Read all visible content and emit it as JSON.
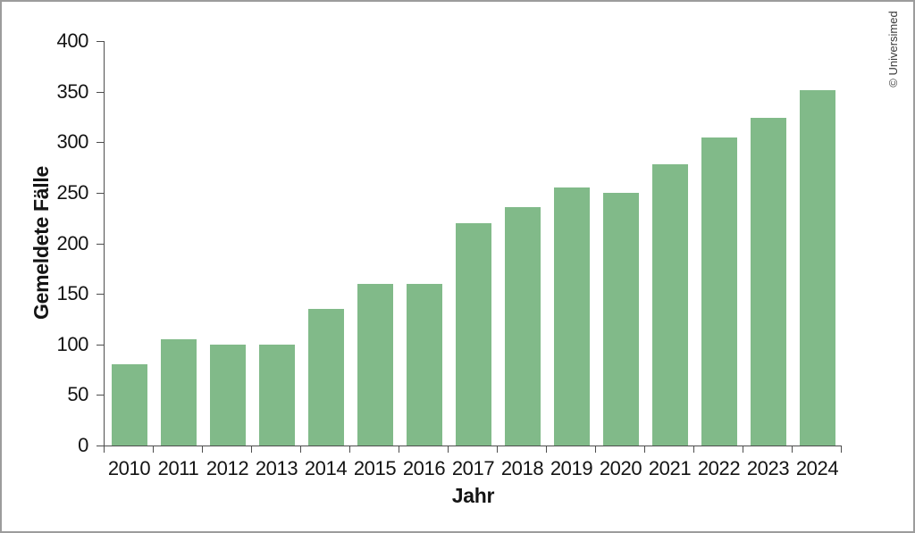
{
  "chart_data": {
    "type": "bar",
    "title": "",
    "xlabel": "Jahr",
    "ylabel": "Gemeldete Fälle",
    "categories": [
      "2010",
      "2011",
      "2012",
      "2013",
      "2014",
      "2015",
      "2016",
      "2017",
      "2018",
      "2019",
      "2020",
      "2021",
      "2022",
      "2023",
      "2024"
    ],
    "values": [
      80,
      105,
      100,
      100,
      135,
      160,
      160,
      220,
      236,
      255,
      250,
      278,
      305,
      324,
      351
    ],
    "ylim": [
      0,
      400
    ],
    "yticks": [
      0,
      50,
      100,
      150,
      200,
      250,
      300,
      350,
      400
    ],
    "grid": false,
    "legend": "none",
    "bar_color": "#81ba89",
    "axis_color": "#4d4d4d",
    "text_color": "#141414"
  },
  "watermark": {
    "text": "© Universimed"
  }
}
